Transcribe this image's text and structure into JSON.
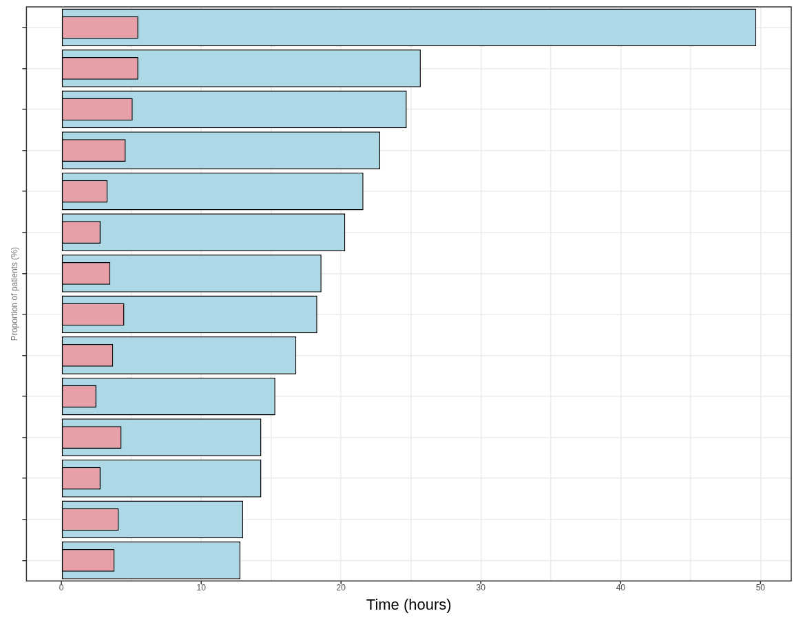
{
  "chart_data": {
    "type": "bar",
    "orientation": "horizontal",
    "xlabel": "Time (hours)",
    "ylabel": "Proportion of patients (%)",
    "categories": [
      null,
      null,
      null,
      null,
      null,
      null,
      null,
      null,
      null,
      null,
      null,
      null,
      null,
      null
    ],
    "series": [
      {
        "color": "#add8e6",
        "values": [
          49.7,
          25.7,
          24.7,
          22.8,
          21.6,
          20.3,
          18.6,
          18.3,
          16.8,
          15.3,
          14.3,
          14.3,
          13.0,
          12.8
        ]
      },
      {
        "color": "#e8a0a8",
        "values": [
          5.5,
          5.5,
          5.1,
          4.6,
          3.3,
          2.8,
          3.5,
          4.5,
          3.7,
          2.5,
          4.3,
          2.8,
          4.1,
          3.8
        ]
      }
    ],
    "xlim": [
      -2.5,
      52.2
    ],
    "xticks": [
      0,
      {
        "value": 5,
        "label": null
      },
      10,
      {
        "value": 15,
        "label": null
      },
      20,
      {
        "value": 25,
        "label": null
      },
      30,
      {
        "value": 35,
        "label": null
      },
      40,
      {
        "value": 45,
        "label": null
      },
      50
    ],
    "grid": true,
    "tick_labels": "x",
    "legend": false
  }
}
